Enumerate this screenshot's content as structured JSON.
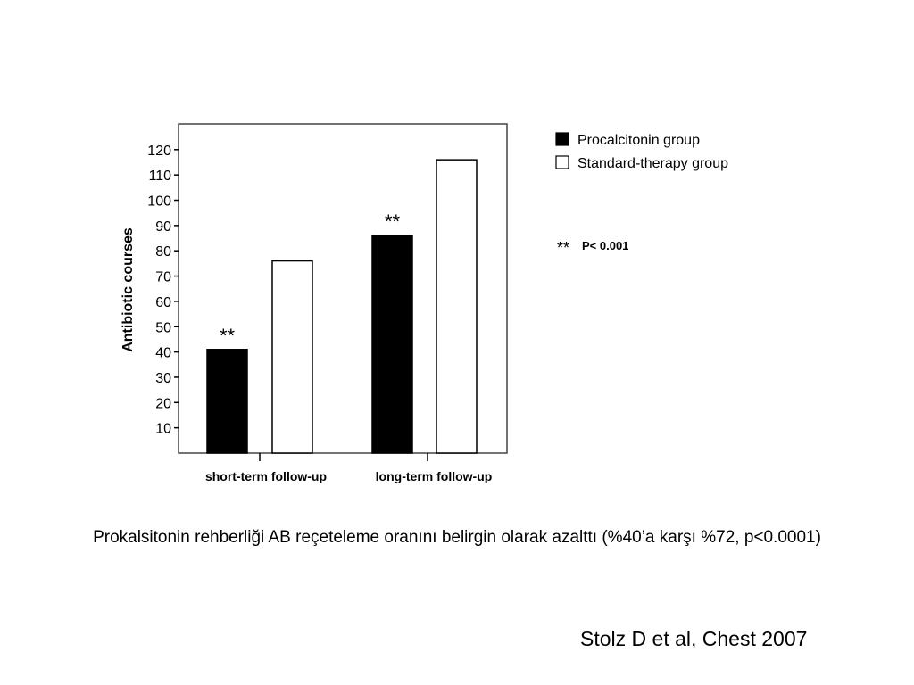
{
  "slide": {
    "caption": "Prokalsitonin rehberliği AB reçeteleme oranını belirgin olarak azalttı (%40’a karşı %72, p<0.0001)",
    "citation": "Stolz D et al, Chest 2007"
  },
  "chart_data": {
    "type": "bar",
    "title": "",
    "xlabel": "",
    "ylabel": "Antibiotic courses",
    "ylim": [
      0,
      125
    ],
    "yticks": [
      10,
      20,
      30,
      40,
      50,
      60,
      70,
      80,
      90,
      100,
      110,
      120
    ],
    "categories": [
      "short-term  follow-up",
      "long-term  follow-up"
    ],
    "series": [
      {
        "name": "Procalcitonin group",
        "values": [
          41,
          86
        ],
        "color": "#000000"
      },
      {
        "name": "Standard-therapy  group",
        "values": [
          76,
          116
        ],
        "color": "#ffffff"
      }
    ],
    "significance": [
      "**",
      "**"
    ],
    "annotation": {
      "marker": "**",
      "text": "P< 0.001"
    },
    "legend_position": "top-right (outside plot)",
    "grid": false
  }
}
